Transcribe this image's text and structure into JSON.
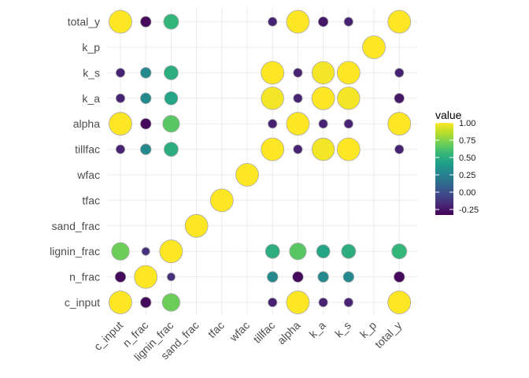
{
  "chart_data": {
    "type": "bubble-heatmap",
    "variables": [
      "c_input",
      "n_frac",
      "lignin_frac",
      "sand_frac",
      "tfac",
      "wfac",
      "tillfac",
      "alpha",
      "k_a",
      "k_s",
      "k_p",
      "total_y"
    ],
    "x": [
      "c_input",
      "n_frac",
      "lignin_frac",
      "sand_frac",
      "tfac",
      "wfac",
      "tillfac",
      "alpha",
      "k_a",
      "k_s",
      "k_p",
      "total_y"
    ],
    "y": [
      "c_input",
      "n_frac",
      "lignin_frac",
      "sand_frac",
      "tfac",
      "wfac",
      "tillfac",
      "alpha",
      "k_a",
      "k_s",
      "k_p",
      "total_y"
    ],
    "matrix": [
      [
        1.0,
        -0.3,
        0.7,
        null,
        null,
        null,
        -0.2,
        1.0,
        -0.2,
        -0.2,
        null,
        1.0
      ],
      [
        -0.3,
        1.0,
        -0.15,
        null,
        null,
        null,
        0.3,
        -0.3,
        0.3,
        0.3,
        null,
        -0.3
      ],
      [
        0.7,
        -0.15,
        1.0,
        null,
        null,
        null,
        0.5,
        0.65,
        0.45,
        0.5,
        null,
        0.55
      ],
      [
        null,
        null,
        null,
        1.0,
        null,
        null,
        null,
        null,
        null,
        null,
        null,
        null
      ],
      [
        null,
        null,
        null,
        null,
        1.0,
        null,
        null,
        null,
        null,
        null,
        null,
        null
      ],
      [
        null,
        null,
        null,
        null,
        null,
        1.0,
        null,
        null,
        null,
        null,
        null,
        null
      ],
      [
        -0.2,
        0.3,
        0.5,
        null,
        null,
        null,
        1.0,
        -0.2,
        0.98,
        1.0,
        null,
        -0.2
      ],
      [
        1.0,
        -0.3,
        0.65,
        null,
        null,
        null,
        -0.2,
        1.0,
        -0.2,
        -0.2,
        null,
        1.0
      ],
      [
        -0.2,
        0.3,
        0.45,
        null,
        null,
        null,
        0.98,
        -0.2,
        1.0,
        0.98,
        null,
        -0.25
      ],
      [
        -0.2,
        0.3,
        0.5,
        null,
        null,
        null,
        1.0,
        -0.2,
        0.98,
        1.0,
        null,
        -0.2
      ],
      [
        null,
        null,
        null,
        null,
        null,
        null,
        null,
        null,
        null,
        null,
        1.0,
        null
      ],
      [
        1.0,
        -0.3,
        0.55,
        null,
        null,
        null,
        -0.2,
        1.0,
        -0.25,
        -0.2,
        null,
        1.0
      ]
    ],
    "legend": {
      "title": "value",
      "ticks": [
        "1.00",
        "0.75",
        "0.50",
        "0.25",
        "0.00",
        "-0.25"
      ],
      "tick_values": [
        1.0,
        0.75,
        0.5,
        0.25,
        0.0,
        -0.25
      ],
      "range": [
        -0.33,
        1.0
      ],
      "placement": "right"
    },
    "colormap": [
      "#440154",
      "#482878",
      "#3e4989",
      "#31688e",
      "#26828e",
      "#1f9e89",
      "#35b779",
      "#6ece58",
      "#b5de2b",
      "#fde725"
    ],
    "grid": true
  }
}
